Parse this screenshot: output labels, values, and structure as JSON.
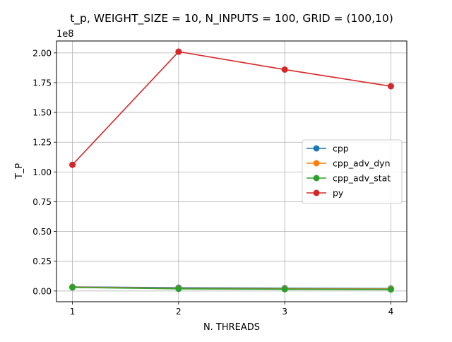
{
  "chart_data": {
    "type": "line",
    "title": "t_p, WEIGHT_SIZE = 10, N_INPUTS = 100, GRID = (100,10)",
    "xlabel": "N. THREADS",
    "ylabel": "T_P",
    "offset_text": "1e8",
    "scale": 100000000,
    "x": [
      1,
      2,
      3,
      4
    ],
    "xlim": [
      0.85,
      4.15
    ],
    "ylim": [
      -0.09,
      2.1
    ],
    "xticks": [
      {
        "value": 1,
        "label": "1"
      },
      {
        "value": 2,
        "label": "2"
      },
      {
        "value": 3,
        "label": "3"
      },
      {
        "value": 4,
        "label": "4"
      }
    ],
    "yticks": [
      {
        "value": 0.0,
        "label": "0.00"
      },
      {
        "value": 0.25,
        "label": "0.25"
      },
      {
        "value": 0.5,
        "label": "0.50"
      },
      {
        "value": 0.75,
        "label": "0.75"
      },
      {
        "value": 1.0,
        "label": "1.00"
      },
      {
        "value": 1.25,
        "label": "1.25"
      },
      {
        "value": 1.5,
        "label": "1.50"
      },
      {
        "value": 1.75,
        "label": "1.75"
      },
      {
        "value": 2.0,
        "label": "2.00"
      }
    ],
    "grid": true,
    "legend_position": "center-right",
    "series": [
      {
        "name": "cpp",
        "color": "#1f77b4",
        "values": [
          0.035,
          0.028,
          0.024,
          0.021
        ]
      },
      {
        "name": "cpp_adv_dyn",
        "color": "#ff7f0e",
        "values": [
          0.033,
          0.022,
          0.019,
          0.017
        ]
      },
      {
        "name": "cpp_adv_stat",
        "color": "#2ca02c",
        "values": [
          0.03,
          0.018,
          0.015,
          0.013
        ]
      },
      {
        "name": "py",
        "color": "#d62728",
        "values": [
          1.06,
          2.01,
          1.86,
          1.72
        ]
      }
    ]
  }
}
